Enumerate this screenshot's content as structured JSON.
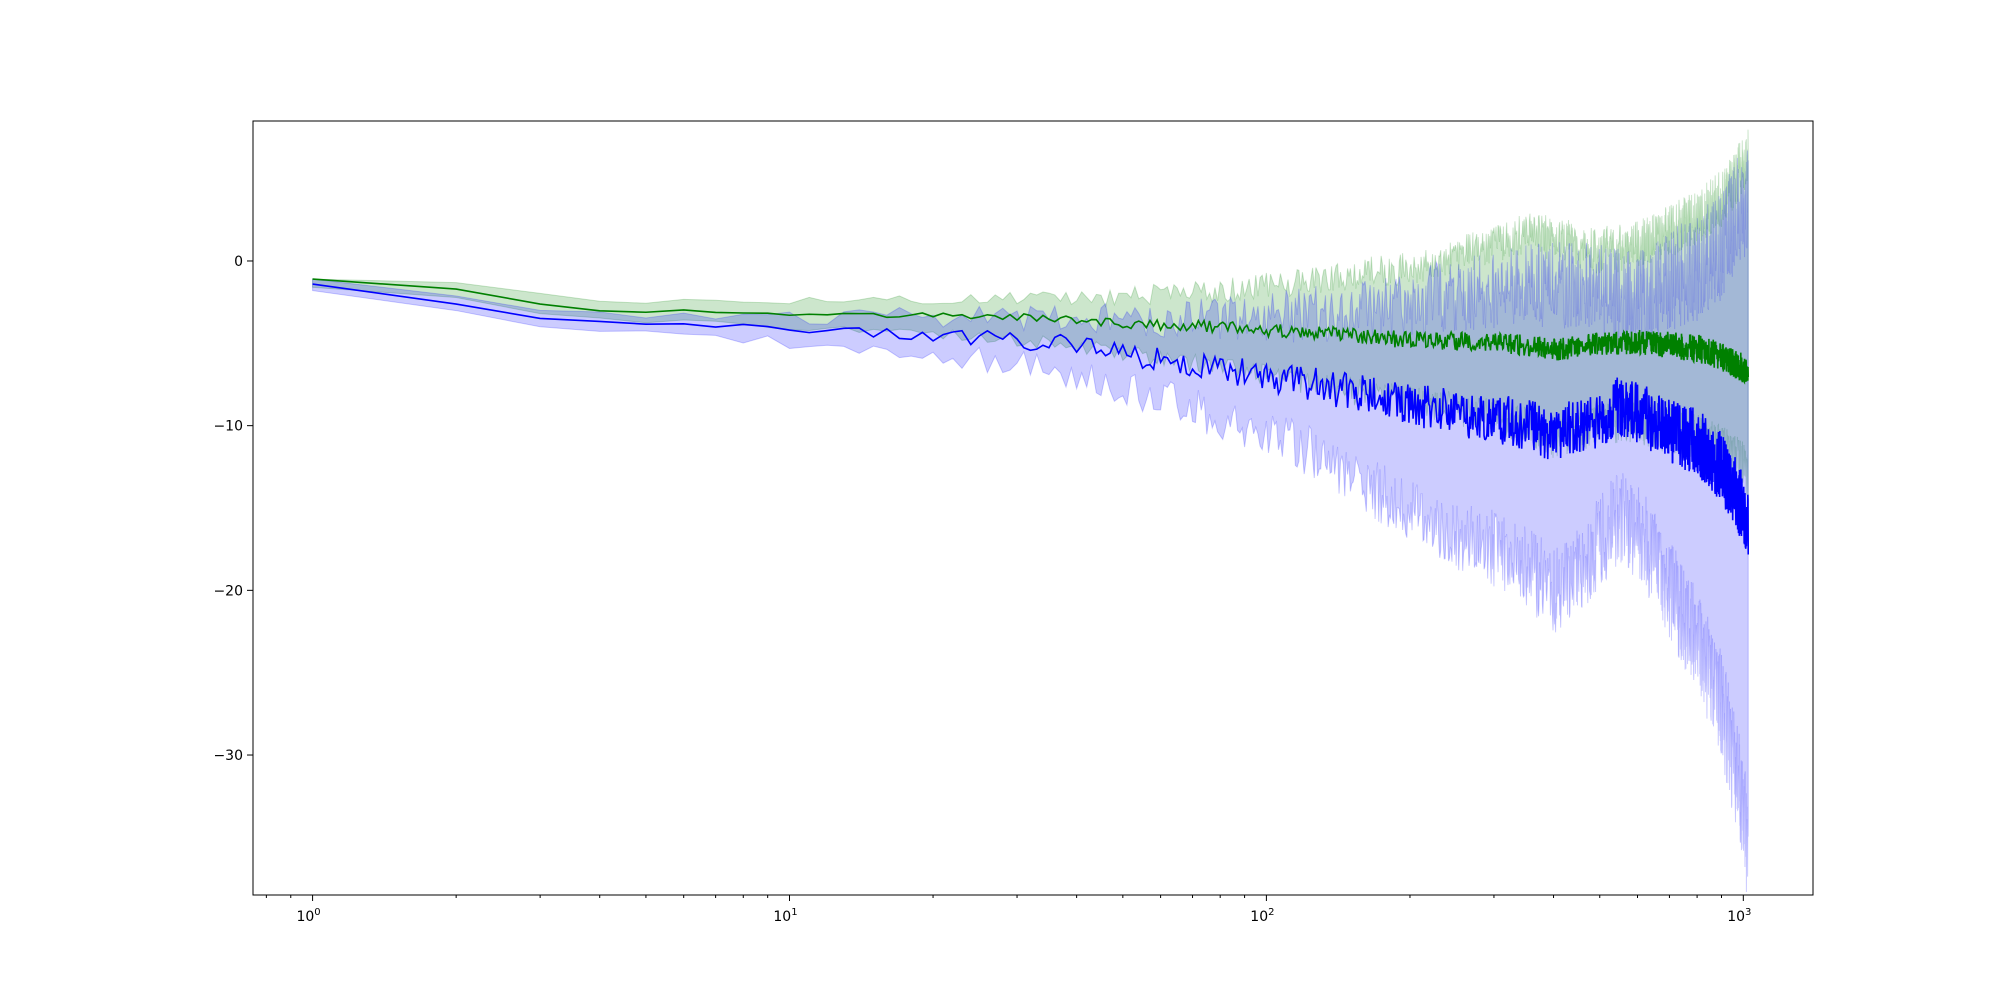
{
  "chart_data": {
    "type": "line",
    "title": "",
    "xlabel": "",
    "ylabel": "",
    "xscale": "log",
    "xlim": [
      0.75,
      1400
    ],
    "ylim": [
      -38.5,
      8.5
    ],
    "grid": false,
    "legend": "none",
    "x_ticks": [
      {
        "value": 1,
        "base": "10",
        "exp": "0"
      },
      {
        "value": 10,
        "base": "10",
        "exp": "1"
      },
      {
        "value": 100,
        "base": "10",
        "exp": "2"
      },
      {
        "value": 1000,
        "base": "10",
        "exp": "3"
      }
    ],
    "y_ticks": [
      {
        "value": 0,
        "label": "0"
      },
      {
        "value": -10,
        "label": "−10"
      },
      {
        "value": -20,
        "label": "−20"
      },
      {
        "value": -30,
        "label": "−30"
      }
    ],
    "series": [
      {
        "color": "#008000",
        "band_color": "#008000",
        "band_opacity": 0.2,
        "line_width": 1.6,
        "points": [
          [
            1,
            -1.1,
            -1.6,
            -1.1
          ],
          [
            2,
            -1.7,
            -2.2,
            -1.3
          ],
          [
            3,
            -2.6,
            -3.2,
            -2.0
          ],
          [
            4,
            -3.0,
            -3.5,
            -2.4
          ],
          [
            5,
            -3.1,
            -3.7,
            -2.5
          ],
          [
            6,
            -3.0,
            -3.6,
            -2.4
          ],
          [
            7,
            -3.1,
            -3.7,
            -2.4
          ],
          [
            8,
            -3.1,
            -3.8,
            -2.4
          ],
          [
            10,
            -3.2,
            -4.0,
            -2.4
          ],
          [
            12,
            -3.2,
            -4.1,
            -2.3
          ],
          [
            15,
            -3.3,
            -4.3,
            -2.3
          ],
          [
            20,
            -3.3,
            -4.4,
            -2.3
          ],
          [
            25,
            -3.4,
            -4.6,
            -2.3
          ],
          [
            30,
            -3.4,
            -4.8,
            -2.3
          ],
          [
            40,
            -3.6,
            -5.2,
            -2.3
          ],
          [
            50,
            -3.8,
            -5.6,
            -2.2
          ],
          [
            60,
            -3.9,
            -6.0,
            -2.0
          ],
          [
            80,
            -4.0,
            -6.5,
            -1.8
          ],
          [
            100,
            -4.2,
            -7.0,
            -1.5
          ],
          [
            130,
            -4.4,
            -7.6,
            -1.2
          ],
          [
            160,
            -4.6,
            -8.0,
            -0.7
          ],
          [
            200,
            -4.8,
            -8.5,
            -0.4
          ],
          [
            250,
            -4.9,
            -9.0,
            0.3
          ],
          [
            300,
            -5.0,
            -9.5,
            1.0
          ],
          [
            350,
            -5.1,
            -10.0,
            1.6
          ],
          [
            400,
            -5.4,
            -10.8,
            1.4
          ],
          [
            450,
            -5.2,
            -10.5,
            1.0
          ],
          [
            500,
            -5.0,
            -9.8,
            0.6
          ],
          [
            600,
            -4.9,
            -9.8,
            1.0
          ],
          [
            700,
            -5.1,
            -10.3,
            1.8
          ],
          [
            800,
            -5.3,
            -10.8,
            2.6
          ],
          [
            900,
            -5.8,
            -11.5,
            3.8
          ],
          [
            1000,
            -6.5,
            -12.5,
            5.8
          ],
          [
            1024,
            -6.8,
            -13.0,
            6.3
          ]
        ]
      },
      {
        "color": "#0000ff",
        "band_color": "#0000ff",
        "band_opacity": 0.2,
        "line_width": 1.6,
        "points": [
          [
            1,
            -1.4,
            -1.8,
            -1.1
          ],
          [
            2,
            -2.6,
            -3.0,
            -2.1
          ],
          [
            3,
            -3.5,
            -4.0,
            -3.0
          ],
          [
            4,
            -3.7,
            -4.2,
            -3.2
          ],
          [
            5,
            -3.8,
            -4.4,
            -3.3
          ],
          [
            6,
            -3.9,
            -4.5,
            -3.3
          ],
          [
            7,
            -4.0,
            -4.7,
            -3.3
          ],
          [
            8,
            -4.0,
            -4.8,
            -3.3
          ],
          [
            10,
            -4.2,
            -5.0,
            -3.4
          ],
          [
            12,
            -4.3,
            -5.2,
            -3.4
          ],
          [
            15,
            -4.4,
            -5.4,
            -3.4
          ],
          [
            20,
            -4.6,
            -5.8,
            -3.4
          ],
          [
            25,
            -4.7,
            -6.0,
            -3.4
          ],
          [
            30,
            -4.8,
            -6.2,
            -3.4
          ],
          [
            40,
            -5.1,
            -6.8,
            -3.4
          ],
          [
            50,
            -5.6,
            -7.6,
            -3.6
          ],
          [
            60,
            -6.0,
            -8.4,
            -3.5
          ],
          [
            80,
            -6.5,
            -9.4,
            -3.4
          ],
          [
            100,
            -7.0,
            -10.5,
            -3.4
          ],
          [
            130,
            -7.6,
            -12.0,
            -3.2
          ],
          [
            160,
            -8.1,
            -13.5,
            -2.8
          ],
          [
            200,
            -8.7,
            -15.0,
            -2.5
          ],
          [
            250,
            -9.2,
            -16.5,
            -2.0
          ],
          [
            300,
            -9.6,
            -17.5,
            -1.8
          ],
          [
            350,
            -9.9,
            -18.5,
            -1.5
          ],
          [
            400,
            -10.6,
            -20.0,
            -1.5
          ],
          [
            450,
            -10.0,
            -19.0,
            -1.5
          ],
          [
            500,
            -9.6,
            -17.0,
            -1.8
          ],
          [
            550,
            -8.8,
            -15.5,
            -2.2
          ],
          [
            600,
            -9.2,
            -16.5,
            -2.2
          ],
          [
            650,
            -9.8,
            -18.0,
            -1.8
          ],
          [
            700,
            -10.3,
            -20.0,
            -1.2
          ],
          [
            800,
            -11.0,
            -23.0,
            -0.5
          ],
          [
            900,
            -12.5,
            -27.0,
            1.0
          ],
          [
            1000,
            -15.0,
            -33.0,
            3.5
          ],
          [
            1024,
            -16.5,
            -36.0,
            4.0
          ]
        ]
      }
    ]
  }
}
